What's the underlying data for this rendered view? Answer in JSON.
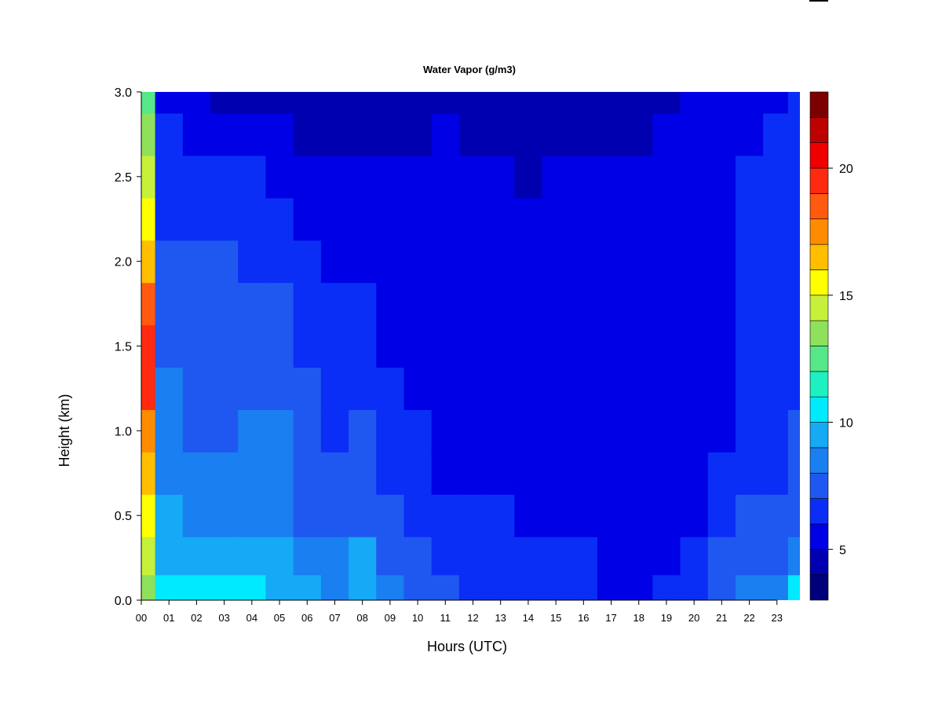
{
  "chart_data": {
    "type": "heatmap",
    "title": "Water Vapor (g/m3)",
    "xlabel": "Hours (UTC)",
    "ylabel": "Height (km)",
    "x_tick_labels": [
      "00",
      "01",
      "02",
      "03",
      "04",
      "05",
      "06",
      "07",
      "08",
      "09",
      "10",
      "11",
      "12",
      "13",
      "14",
      "15",
      "16",
      "17",
      "18",
      "19",
      "20",
      "21",
      "22",
      "23"
    ],
    "y_tick_labels": [
      "0.0",
      "0.5",
      "1.0",
      "1.5",
      "2.0",
      "2.5",
      "3.0"
    ],
    "y_ticks": [
      0.0,
      0.5,
      1.0,
      1.5,
      2.0,
      2.5,
      3.0
    ],
    "xlim": [
      0,
      23.83
    ],
    "ylim": [
      0,
      3.0
    ],
    "colorbar": {
      "range": [
        3,
        23
      ],
      "tick_values": [
        5,
        10,
        15,
        20
      ],
      "tick_labels": [
        "5",
        "10",
        "15",
        "20"
      ],
      "colors": [
        "#00007a",
        "#0000b0",
        "#0000e6",
        "#0a2ef5",
        "#1f58f0",
        "#1a7ff0",
        "#16a9f5",
        "#00eaff",
        "#1ef0c0",
        "#56e888",
        "#8fe05a",
        "#c6f03a",
        "#ffff00",
        "#ffbe00",
        "#ff8c00",
        "#ff5a10",
        "#ff2a10",
        "#ee0000",
        "#bd0000",
        "#7d0000"
      ]
    },
    "hour_columns": [
      0,
      1,
      2,
      3,
      4,
      5,
      6,
      7,
      8,
      9,
      10,
      11,
      12,
      13,
      14,
      15,
      16,
      17,
      18,
      19,
      20,
      21,
      22,
      23,
      23.8
    ],
    "height_rows": [
      0.05,
      0.25,
      0.5,
      0.75,
      1.0,
      1.25,
      1.5,
      1.75,
      2.0,
      2.25,
      2.5,
      2.75,
      3.0
    ],
    "values": [
      [
        13,
        14,
        15,
        16,
        17,
        19,
        19,
        18,
        16,
        15,
        14,
        13,
        12
      ],
      [
        10,
        9.5,
        9,
        8,
        8,
        8,
        7.5,
        7,
        7,
        6.5,
        6,
        6,
        5.5
      ],
      [
        10,
        9.5,
        8.5,
        8,
        7.5,
        7.5,
        7.5,
        7,
        7,
        6.5,
        6,
        5.5,
        5
      ],
      [
        10,
        9.5,
        8.5,
        8,
        7.5,
        7.5,
        7.5,
        7,
        7,
        6.5,
        6,
        5.5,
        4.5
      ],
      [
        10,
        9.5,
        8.5,
        8,
        8,
        7.5,
        7.5,
        7,
        6.5,
        6.5,
        6,
        5.5,
        4.5
      ],
      [
        9.5,
        9.5,
        8.5,
        8,
        8,
        7.5,
        7.5,
        7,
        6.5,
        6,
        5.5,
        5,
        4
      ],
      [
        9,
        8,
        7.5,
        7,
        7,
        7,
        6.5,
        6,
        6,
        5.5,
        5,
        4.5,
        4
      ],
      [
        8.5,
        8,
        7.5,
        7,
        6.5,
        6.5,
        6.5,
        6,
        5.5,
        5.5,
        5,
        4.5,
        4
      ],
      [
        9,
        9,
        7.5,
        7,
        7,
        6.5,
        6.5,
        6,
        5.5,
        5.5,
        5,
        4.5,
        4
      ],
      [
        8,
        7.5,
        7,
        6.5,
        6,
        6,
        5.5,
        5.5,
        5.5,
        5,
        5,
        4.5,
        4
      ],
      [
        7.5,
        7,
        6.5,
        6,
        6,
        5.5,
        5.5,
        5.5,
        5.5,
        5,
        5,
        4.5,
        4.5
      ],
      [
        7,
        6.5,
        6,
        5.5,
        5.5,
        5.5,
        5.5,
        5.5,
        5.5,
        5,
        5,
        5,
        4.5
      ],
      [
        6.5,
        6,
        6,
        5.5,
        5,
        5,
        5,
        5,
        5,
        5,
        5,
        4.5,
        4
      ],
      [
        6.5,
        6,
        6,
        5.5,
        5,
        5,
        5,
        5,
        5,
        5,
        5,
        4.5,
        4
      ],
      [
        6.5,
        6,
        5.5,
        5.5,
        5,
        5,
        5,
        5,
        5,
        5,
        4.5,
        4.5,
        4
      ],
      [
        6.5,
        6,
        5.5,
        5,
        5,
        5,
        5,
        5,
        5,
        5,
        5,
        4.5,
        4
      ],
      [
        6,
        6,
        5.5,
        5,
        5,
        5,
        5,
        5,
        5,
        5,
        5,
        4.5,
        4.5
      ],
      [
        5.5,
        5.5,
        5,
        5,
        5,
        5,
        5,
        5,
        5,
        5,
        5,
        4.5,
        4
      ],
      [
        5.5,
        5.5,
        5,
        5,
        5,
        5,
        5,
        5,
        5,
        5,
        5,
        4.5,
        4
      ],
      [
        6,
        5.5,
        5,
        5,
        5,
        5,
        5,
        5,
        5,
        5,
        5,
        5,
        4.5
      ],
      [
        6.5,
        6,
        5.5,
        5,
        5,
        5,
        5,
        5,
        5,
        5,
        5,
        5,
        5
      ],
      [
        7.5,
        7,
        6.5,
        6,
        5.5,
        5.5,
        5.5,
        5.5,
        5.5,
        5.5,
        5.5,
        5.5,
        5
      ],
      [
        8,
        7.5,
        7,
        6.5,
        6,
        6,
        6,
        6,
        6,
        6,
        6,
        5.5,
        5
      ],
      [
        8,
        7.5,
        7,
        6.5,
        6.5,
        6,
        6,
        6,
        6,
        6,
        6,
        6,
        5.5
      ],
      [
        10,
        8,
        7.5,
        7,
        7,
        6.5,
        6.5,
        6.5,
        6.5,
        6.5,
        6.5,
        6.5,
        6
      ]
    ]
  }
}
